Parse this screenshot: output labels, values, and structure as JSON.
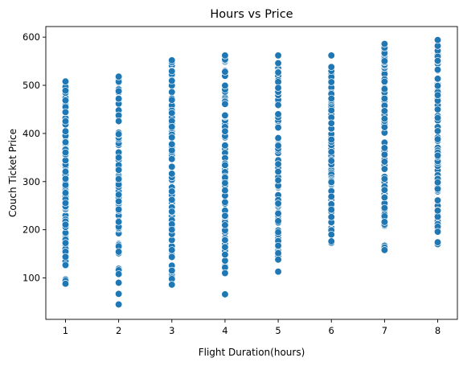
{
  "chart_data": {
    "type": "scatter",
    "title": "Hours vs Price",
    "xlabel": "Flight Duration(hours)",
    "ylabel": "Couch Ticket Price",
    "x_ticks": [
      1,
      2,
      3,
      4,
      5,
      6,
      7,
      8
    ],
    "y_ticks": [
      100,
      200,
      300,
      400,
      500,
      600
    ],
    "xlim": [
      0.63,
      8.37
    ],
    "ylim": [
      14,
      622
    ],
    "grid": false,
    "marker_color": "#1f77b4",
    "groups": [
      {
        "x": 1,
        "min": 88,
        "max": 508,
        "outliers": []
      },
      {
        "x": 2,
        "min": 116,
        "max": 518,
        "outliers": [
          45,
          67,
          90,
          108
        ]
      },
      {
        "x": 3,
        "min": 86,
        "max": 552,
        "outliers": []
      },
      {
        "x": 4,
        "min": 110,
        "max": 562,
        "outliers": [
          66
        ]
      },
      {
        "x": 5,
        "min": 138,
        "max": 562,
        "outliers": [
          113
        ]
      },
      {
        "x": 6,
        "min": 190,
        "max": 538,
        "outliers": [
          173,
          176,
          562
        ]
      },
      {
        "x": 7,
        "min": 158,
        "max": 586,
        "outliers": []
      },
      {
        "x": 8,
        "min": 196,
        "max": 594,
        "outliers": [
          170,
          174
        ]
      }
    ]
  }
}
